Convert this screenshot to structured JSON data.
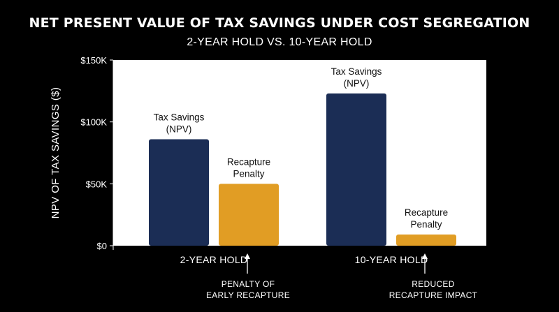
{
  "chart_data": {
    "type": "bar",
    "title": "NET PRESENT VALUE OF TAX SAVINGS UNDER COST SEGREGATION",
    "subtitle": "2-YEAR HOLD VS. 10-YEAR HOLD",
    "xlabel": "",
    "ylabel": "NPV OF TAX SAVINGS ($)",
    "ylim": [
      0,
      150000
    ],
    "yticks": [
      {
        "value": 0,
        "label": "$0"
      },
      {
        "value": 50000,
        "label": "$50K"
      },
      {
        "value": 100000,
        "label": "$100K"
      },
      {
        "value": 150000,
        "label": "$150K"
      }
    ],
    "categories": [
      "2-YEAR HOLD",
      "10-YEAR HOLD"
    ],
    "series": [
      {
        "name": "Tax Savings (NPV)",
        "color": "#1b2d55",
        "values": [
          86000,
          123000
        ],
        "labels": [
          [
            "Tax Savings",
            "(NPV)"
          ],
          [
            "Tax Savings",
            "(NPV)"
          ]
        ]
      },
      {
        "name": "Recapture Penalty",
        "color": "#e19d24",
        "values": [
          50000,
          9000
        ],
        "labels": [
          [
            "Recapture",
            "Penalty"
          ],
          [
            "Recapture",
            "Penalty"
          ]
        ]
      }
    ],
    "annotations": [
      {
        "category": "2-YEAR HOLD",
        "lines": [
          "PENALTY OF",
          "EARLY RECAPTURE"
        ]
      },
      {
        "category": "10-YEAR HOLD",
        "lines": [
          "REDUCED",
          "RECAPTURE IMPACT"
        ]
      }
    ],
    "grid": false,
    "plot_background": "#ffffff"
  }
}
